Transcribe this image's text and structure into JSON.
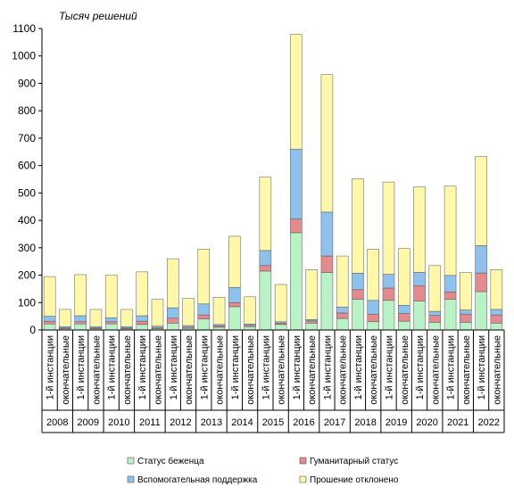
{
  "chart_data": {
    "type": "bar",
    "stacked": true,
    "ylabel": "Тысяч решений",
    "ylim": [
      0,
      1100
    ],
    "yticks": [
      0,
      100,
      200,
      300,
      400,
      500,
      600,
      700,
      800,
      900,
      1000,
      1100
    ],
    "grid": false,
    "legend_position": "bottom",
    "years": [
      "2008",
      "2009",
      "2010",
      "2011",
      "2012",
      "2013",
      "2014",
      "2015",
      "2016",
      "2017",
      "2018",
      "2019",
      "2020",
      "2021",
      "2022"
    ],
    "categories": [
      "1-й инстанции",
      "окончательные",
      "1-й инстанции",
      "окончательные",
      "1-й инстанции",
      "окончательные",
      "1-й инстанции",
      "окончательные",
      "1-й инстанции",
      "окончательные",
      "1-й инстанции",
      "окончательные",
      "1-й инстанции",
      "окончательные",
      "1-й инстанции",
      "окончательные",
      "1-й инстанции",
      "окончательные",
      "1-й инстанции",
      "окончательные",
      "1-й инстанции",
      "окончательные",
      "1-й инстанции",
      "окончательные",
      "1-й инстанции",
      "окончательные",
      "1-й инстанции",
      "окончательные",
      "1-й инстанции",
      "окончательные"
    ],
    "series": [
      {
        "name": "Статус беженца",
        "color": "#b9f2c4",
        "values": [
          22,
          4,
          22,
          4,
          22,
          4,
          20,
          5,
          25,
          6,
          40,
          10,
          85,
          12,
          215,
          20,
          355,
          25,
          210,
          42,
          112,
          30,
          108,
          32,
          105,
          28,
          112,
          28,
          140,
          25
        ]
      },
      {
        "name": "Гуманитарный статус",
        "color": "#e28a8e",
        "values": [
          10,
          3,
          8,
          3,
          8,
          3,
          12,
          4,
          18,
          4,
          15,
          5,
          15,
          5,
          20,
          5,
          50,
          8,
          60,
          20,
          35,
          28,
          45,
          28,
          57,
          25,
          27,
          30,
          68,
          30
        ]
      },
      {
        "name": "Вспомогательная поддержка",
        "color": "#8ec2ec",
        "values": [
          18,
          5,
          22,
          5,
          15,
          5,
          20,
          5,
          38,
          6,
          40,
          5,
          55,
          5,
          55,
          5,
          255,
          5,
          160,
          22,
          60,
          50,
          50,
          30,
          48,
          15,
          60,
          15,
          100,
          20
        ]
      },
      {
        "name": "Прошение отклонено",
        "color": "#fff8a8",
        "values": [
          145,
          63,
          150,
          63,
          155,
          63,
          160,
          98,
          179,
          99,
          200,
          99,
          187,
          99,
          268,
          136,
          418,
          182,
          502,
          186,
          345,
          187,
          337,
          207,
          312,
          167,
          326,
          137,
          325,
          145
        ]
      }
    ]
  }
}
